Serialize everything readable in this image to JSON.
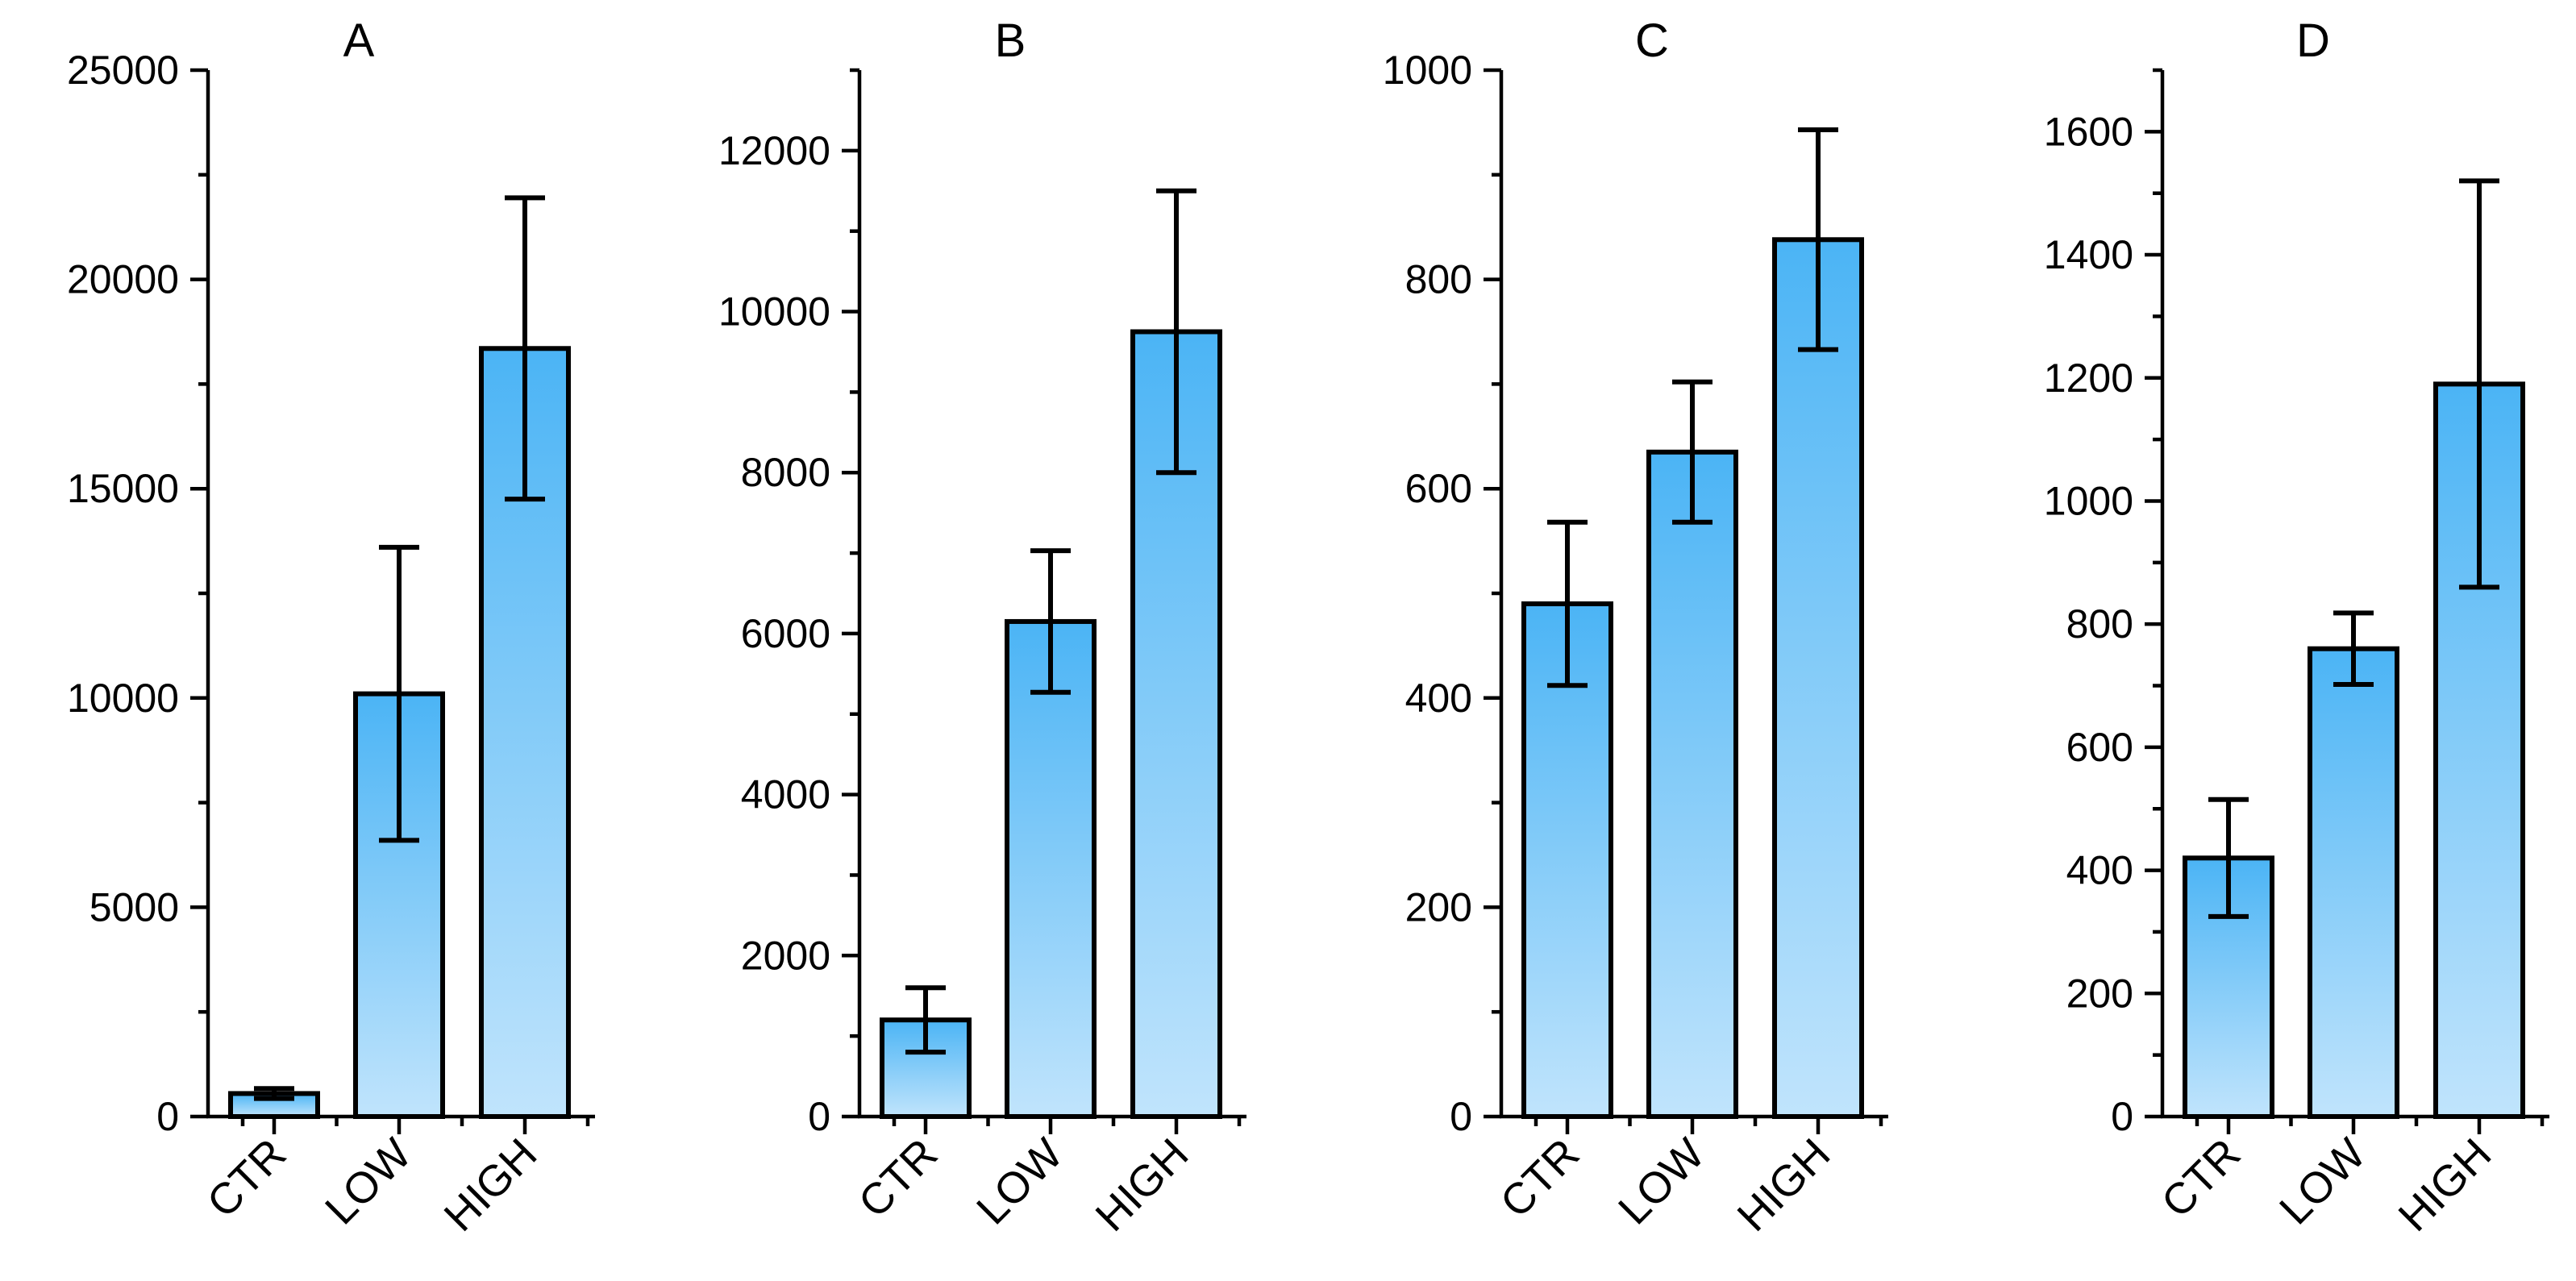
{
  "chart_data": [
    {
      "type": "bar",
      "title": "A",
      "categories": [
        "CTR",
        "LOW",
        "HIGH"
      ],
      "values": [
        550,
        10100,
        18350
      ],
      "errors": [
        120,
        3500,
        3600
      ],
      "ylim": [
        0,
        25000
      ],
      "yticks": [
        0,
        5000,
        10000,
        15000,
        20000,
        25000
      ],
      "grid": false,
      "legend": "none"
    },
    {
      "type": "bar",
      "title": "B",
      "categories": [
        "CTR",
        "LOW",
        "HIGH"
      ],
      "values": [
        1200,
        6150,
        9750
      ],
      "errors": [
        400,
        880,
        1750
      ],
      "ylim": [
        0,
        13000
      ],
      "yticks": [
        0,
        2000,
        4000,
        6000,
        8000,
        10000,
        12000
      ],
      "grid": false,
      "legend": "none"
    },
    {
      "type": "bar",
      "title": "C",
      "categories": [
        "CTR",
        "LOW",
        "HIGH"
      ],
      "values": [
        490,
        635,
        838
      ],
      "errors": [
        78,
        67,
        105
      ],
      "ylim": [
        0,
        1000
      ],
      "yticks": [
        0,
        200,
        400,
        600,
        800,
        1000
      ],
      "grid": false,
      "legend": "none"
    },
    {
      "type": "bar",
      "title": "D",
      "categories": [
        "CTR",
        "LOW",
        "HIGH"
      ],
      "values": [
        420,
        760,
        1190
      ],
      "errors": [
        95,
        58,
        330
      ],
      "ylim": [
        0,
        1700
      ],
      "yticks": [
        0,
        200,
        400,
        600,
        800,
        1000,
        1200,
        1400,
        1600
      ],
      "grid": false,
      "legend": "none"
    }
  ],
  "colors": {
    "bar_top": "#4bb4f5",
    "bar_bottom": "#c0e4fc",
    "axis": "#000000"
  }
}
